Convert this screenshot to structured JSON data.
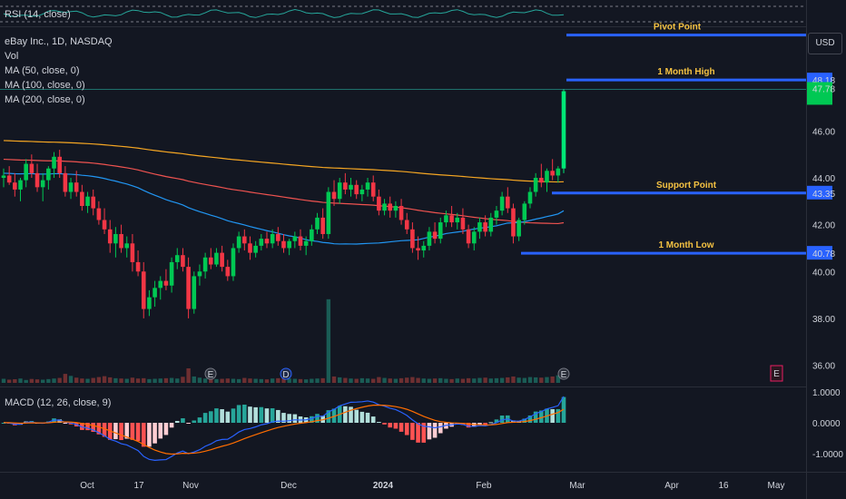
{
  "rsi": {
    "label": "RSI (14, close)"
  },
  "legend": {
    "symbol": "eBay Inc., 1D, NASDAQ",
    "vol": "Vol",
    "ma50": "MA (50, close, 0)",
    "ma100": "MA (100, close, 0)",
    "ma200": "MA (200, close, 0)"
  },
  "macd": {
    "label": "MACD (12, 26, close, 9)"
  },
  "currency": "USD",
  "colors": {
    "up": "#26a69a",
    "upBright": "#00e676",
    "down": "#ef5350",
    "level": "#2962ff",
    "ma50": "#2196f3",
    "ma100": "#ef5350",
    "ma200": "#f5a623",
    "bg": "#131722"
  },
  "chart_data": {
    "type": "candlestick",
    "price_axis": {
      "ticks": [
        "46.00",
        "44.00",
        "42.00",
        "40.00",
        "38.00",
        "36.00"
      ],
      "ylim": [
        35.4,
        50.2
      ]
    },
    "macd_axis": {
      "ticks": [
        "1.0000",
        "0.0000",
        "-1.0000"
      ]
    },
    "x_axis_labels": [
      "Oct",
      "17",
      "Nov",
      "Dec",
      "2024",
      "Feb",
      "Mar",
      "Apr",
      "16",
      "May"
    ],
    "levels": [
      {
        "name": "Pivot Point",
        "value": 50.1
      },
      {
        "name": "1 Month High",
        "value": 48.18,
        "axis_label": "48.18"
      },
      {
        "name": "Support Point",
        "value": 43.35,
        "axis_label": "43.35"
      },
      {
        "name": "1 Month Low",
        "value": 40.78,
        "axis_label": "40.78"
      }
    ],
    "last_price": {
      "value": 47.78,
      "label": "47.78"
    },
    "ohlc": [
      [
        44.0,
        44.4,
        43.6,
        44.1
      ],
      [
        44.1,
        44.5,
        43.7,
        43.8
      ],
      [
        43.8,
        44.2,
        43.2,
        43.5
      ],
      [
        43.5,
        44.0,
        43.0,
        43.9
      ],
      [
        43.9,
        44.8,
        43.6,
        44.6
      ],
      [
        44.6,
        45.0,
        44.0,
        44.2
      ],
      [
        44.2,
        44.6,
        43.4,
        43.6
      ],
      [
        43.6,
        44.2,
        43.0,
        43.9
      ],
      [
        43.9,
        44.5,
        43.5,
        44.4
      ],
      [
        44.4,
        45.1,
        44.0,
        44.9
      ],
      [
        44.9,
        45.2,
        44.0,
        44.2
      ],
      [
        44.2,
        44.5,
        43.2,
        43.4
      ],
      [
        43.4,
        44.0,
        43.1,
        43.8
      ],
      [
        43.8,
        44.3,
        43.2,
        43.4
      ],
      [
        43.4,
        43.7,
        42.6,
        42.8
      ],
      [
        42.8,
        43.4,
        42.5,
        43.2
      ],
      [
        43.2,
        43.5,
        42.4,
        42.7
      ],
      [
        42.7,
        43.0,
        42.0,
        42.2
      ],
      [
        42.2,
        42.7,
        41.6,
        41.8
      ],
      [
        41.8,
        42.2,
        40.8,
        41.2
      ],
      [
        41.2,
        41.9,
        40.6,
        41.6
      ],
      [
        41.6,
        42.0,
        40.8,
        41.0
      ],
      [
        41.0,
        41.5,
        40.6,
        41.2
      ],
      [
        41.2,
        41.6,
        40.0,
        40.4
      ],
      [
        40.4,
        40.9,
        39.8,
        40.0
      ],
      [
        40.0,
        40.4,
        38.0,
        38.4
      ],
      [
        38.4,
        39.2,
        38.1,
        38.9
      ],
      [
        38.9,
        39.6,
        38.5,
        39.3
      ],
      [
        39.3,
        39.8,
        38.8,
        39.6
      ],
      [
        39.6,
        40.1,
        39.2,
        39.4
      ],
      [
        39.4,
        40.6,
        39.1,
        40.4
      ],
      [
        40.4,
        41.0,
        40.1,
        40.7
      ],
      [
        40.7,
        41.0,
        40.0,
        40.2
      ],
      [
        40.2,
        40.6,
        38.0,
        38.4
      ],
      [
        38.4,
        40.0,
        38.2,
        39.8
      ],
      [
        39.8,
        40.3,
        39.4,
        40.0
      ],
      [
        40.0,
        40.8,
        39.7,
        40.6
      ],
      [
        40.6,
        41.0,
        40.1,
        40.3
      ],
      [
        40.3,
        41.0,
        40.2,
        40.8
      ],
      [
        40.8,
        41.1,
        40.0,
        40.2
      ],
      [
        40.2,
        40.5,
        39.6,
        39.8
      ],
      [
        39.8,
        41.2,
        39.6,
        41.0
      ],
      [
        41.0,
        41.7,
        40.8,
        41.5
      ],
      [
        41.5,
        41.8,
        40.9,
        41.2
      ],
      [
        41.2,
        41.5,
        40.5,
        40.8
      ],
      [
        40.8,
        41.3,
        40.6,
        41.1
      ],
      [
        41.1,
        41.6,
        40.9,
        41.4
      ],
      [
        41.4,
        41.7,
        41.0,
        41.2
      ],
      [
        41.2,
        41.8,
        41.0,
        41.6
      ],
      [
        41.6,
        41.9,
        41.1,
        41.3
      ],
      [
        41.3,
        41.6,
        40.8,
        41.0
      ],
      [
        41.0,
        41.4,
        40.7,
        41.3
      ],
      [
        41.3,
        41.7,
        41.0,
        41.5
      ],
      [
        41.5,
        41.8,
        40.9,
        41.1
      ],
      [
        41.1,
        41.5,
        40.7,
        41.3
      ],
      [
        41.3,
        42.0,
        41.1,
        41.8
      ],
      [
        41.8,
        42.5,
        41.6,
        42.3
      ],
      [
        42.3,
        42.7,
        41.4,
        41.6
      ],
      [
        41.6,
        43.6,
        41.4,
        43.4
      ],
      [
        43.4,
        43.9,
        42.8,
        43.1
      ],
      [
        43.1,
        44.0,
        42.9,
        43.8
      ],
      [
        43.8,
        44.2,
        43.3,
        43.5
      ],
      [
        43.5,
        44.0,
        43.2,
        43.7
      ],
      [
        43.7,
        43.9,
        43.1,
        43.3
      ],
      [
        43.3,
        43.7,
        43.0,
        43.5
      ],
      [
        43.5,
        44.0,
        43.2,
        43.8
      ],
      [
        43.8,
        44.1,
        43.0,
        43.2
      ],
      [
        43.2,
        43.5,
        42.4,
        42.6
      ],
      [
        42.6,
        43.1,
        42.4,
        42.9
      ],
      [
        42.9,
        43.2,
        42.3,
        42.6
      ],
      [
        42.6,
        43.0,
        42.3,
        42.8
      ],
      [
        42.8,
        43.1,
        42.0,
        42.2
      ],
      [
        42.2,
        42.5,
        41.6,
        41.8
      ],
      [
        41.8,
        42.1,
        40.8,
        41.0
      ],
      [
        41.0,
        41.5,
        40.5,
        40.9
      ],
      [
        40.9,
        41.3,
        40.6,
        41.1
      ],
      [
        41.1,
        41.9,
        40.9,
        41.7
      ],
      [
        41.7,
        42.1,
        41.2,
        41.4
      ],
      [
        41.4,
        42.3,
        41.2,
        42.1
      ],
      [
        42.1,
        42.6,
        41.9,
        42.4
      ],
      [
        42.4,
        42.8,
        41.9,
        42.1
      ],
      [
        42.1,
        42.5,
        41.8,
        42.3
      ],
      [
        42.3,
        42.7,
        41.6,
        41.8
      ],
      [
        41.8,
        42.0,
        41.0,
        41.2
      ],
      [
        41.2,
        41.9,
        40.9,
        41.7
      ],
      [
        41.7,
        42.3,
        41.4,
        42.1
      ],
      [
        42.1,
        42.4,
        41.5,
        41.7
      ],
      [
        41.7,
        42.5,
        41.5,
        42.3
      ],
      [
        42.3,
        42.8,
        42.0,
        42.6
      ],
      [
        42.6,
        43.4,
        42.4,
        43.2
      ],
      [
        43.2,
        43.6,
        42.5,
        42.7
      ],
      [
        42.7,
        42.9,
        41.2,
        41.5
      ],
      [
        41.5,
        42.3,
        41.3,
        42.2
      ],
      [
        42.2,
        43.0,
        42.0,
        42.9
      ],
      [
        42.9,
        43.6,
        42.7,
        43.4
      ],
      [
        43.4,
        44.2,
        43.2,
        44.0
      ],
      [
        44.0,
        44.6,
        43.6,
        43.8
      ],
      [
        43.8,
        44.4,
        43.4,
        44.3
      ],
      [
        44.3,
        44.8,
        43.9,
        44.1
      ],
      [
        44.1,
        44.5,
        43.8,
        44.4
      ],
      [
        44.4,
        47.8,
        44.2,
        47.7
      ]
    ],
    "volume": [
      0.28,
      0.22,
      0.25,
      0.3,
      0.2,
      0.27,
      0.24,
      0.22,
      0.26,
      0.3,
      0.34,
      0.62,
      0.48,
      0.36,
      0.3,
      0.28,
      0.34,
      0.4,
      0.46,
      0.38,
      0.32,
      0.3,
      0.28,
      0.36,
      0.3,
      0.32,
      0.26,
      0.28,
      0.3,
      0.32,
      0.34,
      0.3,
      0.42,
      1.0,
      0.44,
      0.36,
      0.3,
      0.28,
      0.26,
      0.28,
      0.3,
      0.28,
      0.26,
      0.34,
      0.3,
      0.28,
      0.26,
      0.24,
      0.3,
      0.32,
      0.36,
      0.3,
      0.28,
      0.26,
      0.24,
      0.28,
      0.3,
      0.32,
      2.4,
      0.44,
      0.38,
      0.34,
      0.3,
      0.28,
      0.32,
      0.3,
      0.28,
      0.4,
      0.34,
      0.3,
      0.28,
      0.32,
      0.36,
      0.4,
      0.34,
      0.3,
      0.28,
      0.3,
      0.32,
      0.28,
      0.26,
      0.3,
      0.28,
      0.32,
      0.3,
      0.34,
      0.36,
      0.3,
      0.32,
      0.34,
      0.38,
      0.44,
      0.36,
      0.34,
      0.4,
      0.38,
      0.36,
      0.4,
      0.44,
      0.52
    ],
    "ma50": [],
    "macd": []
  }
}
